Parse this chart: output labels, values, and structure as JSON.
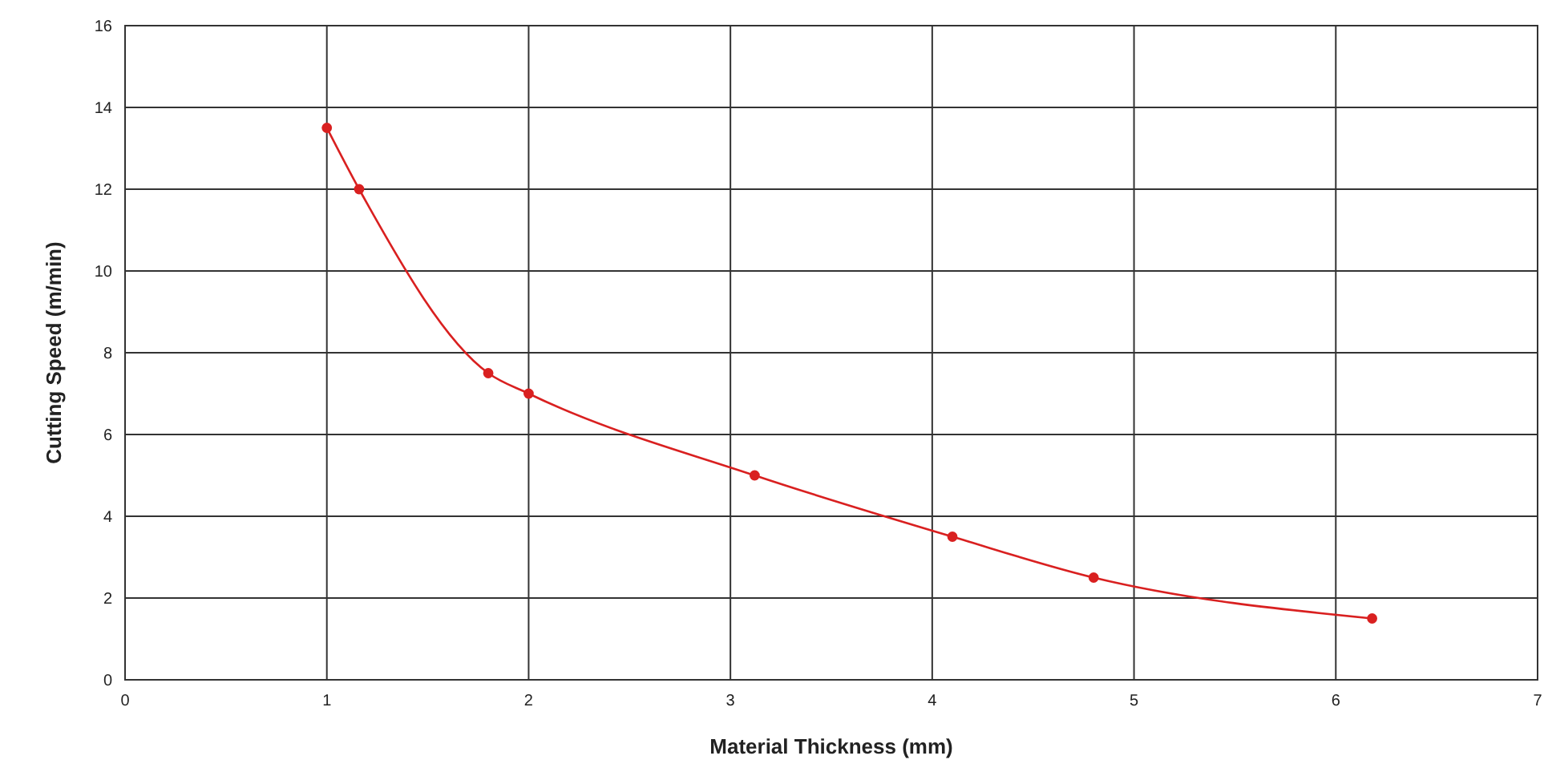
{
  "chart_data": {
    "type": "line",
    "xlabel": "Material Thickness (mm)",
    "ylabel": "Cutting Speed (m/min)",
    "x": [
      1,
      1.16,
      1.8,
      2,
      3.12,
      4.1,
      4.8,
      6.18
    ],
    "series": [
      {
        "color": "#d92020",
        "values": [
          13.5,
          12,
          7.5,
          7,
          5,
          3.5,
          2.5,
          1.5
        ]
      }
    ],
    "xlim": [
      0,
      7
    ],
    "xticks": [
      0,
      1,
      2,
      3,
      4,
      5,
      6,
      7
    ],
    "ylim": [
      0,
      16
    ],
    "yticks": [
      0,
      2,
      4,
      6,
      8,
      10,
      12,
      14,
      16
    ],
    "grid": true,
    "marker": "circle",
    "line_style": "solid"
  }
}
